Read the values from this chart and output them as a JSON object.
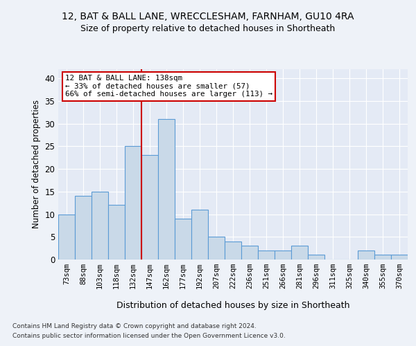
{
  "title_line1": "12, BAT & BALL LANE, WRECCLESHAM, FARNHAM, GU10 4RA",
  "title_line2": "Size of property relative to detached houses in Shortheath",
  "xlabel": "Distribution of detached houses by size in Shortheath",
  "ylabel": "Number of detached properties",
  "categories": [
    "73sqm",
    "88sqm",
    "103sqm",
    "118sqm",
    "132sqm",
    "147sqm",
    "162sqm",
    "177sqm",
    "192sqm",
    "207sqm",
    "222sqm",
    "236sqm",
    "251sqm",
    "266sqm",
    "281sqm",
    "296sqm",
    "311sqm",
    "325sqm",
    "340sqm",
    "355sqm",
    "370sqm"
  ],
  "values": [
    10,
    14,
    15,
    12,
    25,
    23,
    31,
    9,
    11,
    5,
    4,
    3,
    2,
    2,
    3,
    1,
    0,
    0,
    2,
    1,
    1
  ],
  "bar_color": "#c9d9e8",
  "bar_edge_color": "#5b9bd5",
  "vline_color": "#cc0000",
  "annotation_text": "12 BAT & BALL LANE: 138sqm\n← 33% of detached houses are smaller (57)\n66% of semi-detached houses are larger (113) →",
  "annotation_box_color": "#ffffff",
  "annotation_box_edge_color": "#cc0000",
  "ylim": [
    0,
    42
  ],
  "yticks": [
    0,
    5,
    10,
    15,
    20,
    25,
    30,
    35,
    40
  ],
  "footer_line1": "Contains HM Land Registry data © Crown copyright and database right 2024.",
  "footer_line2": "Contains public sector information licensed under the Open Government Licence v3.0.",
  "bg_color": "#eef2f8",
  "plot_bg_color": "#e4eaf5",
  "grid_color": "#ffffff"
}
